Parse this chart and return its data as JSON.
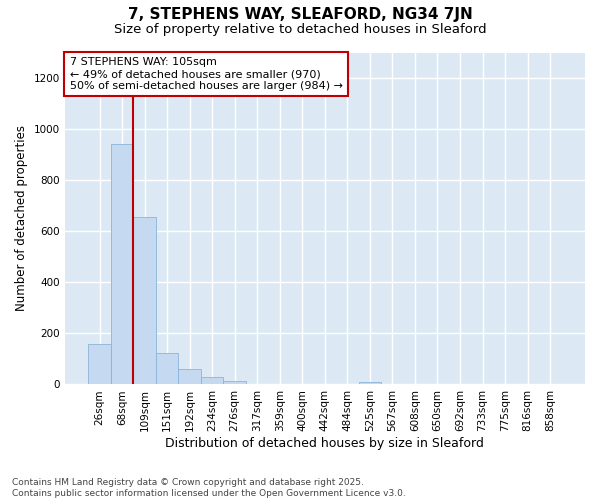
{
  "title": "7, STEPHENS WAY, SLEAFORD, NG34 7JN",
  "subtitle": "Size of property relative to detached houses in Sleaford",
  "xlabel": "Distribution of detached houses by size in Sleaford",
  "ylabel": "Number of detached properties",
  "categories": [
    "26sqm",
    "68sqm",
    "109sqm",
    "151sqm",
    "192sqm",
    "234sqm",
    "276sqm",
    "317sqm",
    "359sqm",
    "400sqm",
    "442sqm",
    "484sqm",
    "525sqm",
    "567sqm",
    "608sqm",
    "650sqm",
    "692sqm",
    "733sqm",
    "775sqm",
    "816sqm",
    "858sqm"
  ],
  "values": [
    160,
    940,
    655,
    125,
    60,
    30,
    15,
    0,
    0,
    0,
    0,
    0,
    10,
    0,
    0,
    0,
    0,
    0,
    0,
    0,
    0
  ],
  "bar_color": "#c5d9f1",
  "bar_edge_color": "#8ab4d9",
  "vline_color": "#c00000",
  "annotation_text": "7 STEPHENS WAY: 105sqm\n← 49% of detached houses are smaller (970)\n50% of semi-detached houses are larger (984) →",
  "annotation_box_color": "#ffffff",
  "annotation_box_edge": "#c00000",
  "ylim": [
    0,
    1300
  ],
  "yticks": [
    0,
    200,
    400,
    600,
    800,
    1000,
    1200
  ],
  "footer": "Contains HM Land Registry data © Crown copyright and database right 2025.\nContains public sector information licensed under the Open Government Licence v3.0.",
  "background_color": "#ffffff",
  "plot_bg_color": "#dce9f5",
  "grid_color": "#ffffff",
  "title_fontsize": 11,
  "subtitle_fontsize": 9.5,
  "xlabel_fontsize": 9,
  "ylabel_fontsize": 8.5,
  "tick_fontsize": 7.5,
  "footer_fontsize": 6.5,
  "annot_fontsize": 8
}
